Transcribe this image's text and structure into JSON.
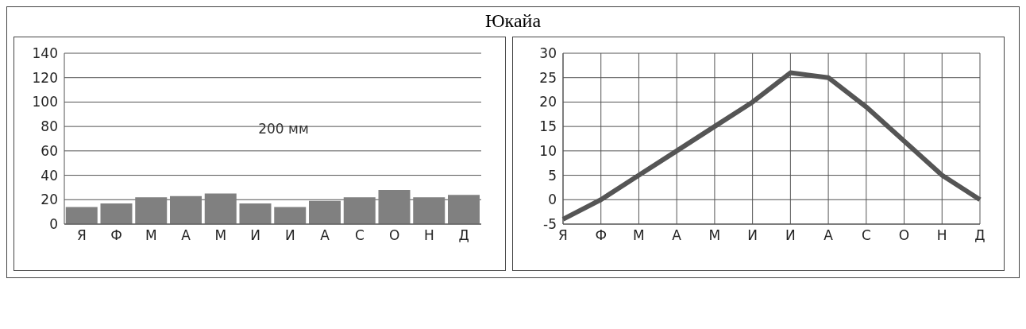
{
  "chart_data": [
    {
      "type": "bar",
      "title": "Юкайа",
      "categories": [
        "Я",
        "Ф",
        "М",
        "А",
        "М",
        "И",
        "И",
        "А",
        "С",
        "О",
        "Н",
        "Д"
      ],
      "values": [
        14,
        17,
        22,
        23,
        25,
        17,
        14,
        19,
        22,
        28,
        22,
        24
      ],
      "color": "#808080",
      "ylim": [
        0,
        140
      ],
      "yticks": [
        0,
        20,
        40,
        60,
        80,
        100,
        120,
        140
      ],
      "grid": "y",
      "annotations": [
        "200 мм"
      ]
    },
    {
      "type": "line",
      "categories": [
        "Я",
        "Ф",
        "М",
        "А",
        "М",
        "И",
        "И",
        "А",
        "С",
        "О",
        "Н",
        "Д"
      ],
      "values": [
        -4,
        0,
        5,
        10,
        15,
        20,
        26,
        25,
        19,
        12,
        5,
        0
      ],
      "color": "#555555",
      "ylim": [
        -5,
        30
      ],
      "yticks": [
        -5,
        0,
        5,
        10,
        15,
        20,
        25,
        30
      ],
      "grid": true,
      "marker": "none",
      "line_style": "solid"
    }
  ]
}
